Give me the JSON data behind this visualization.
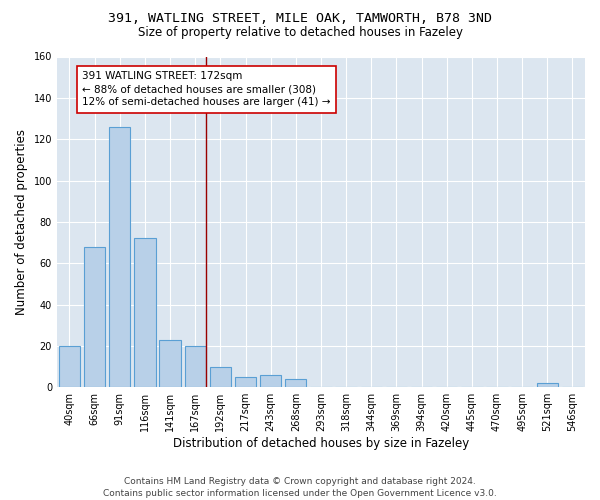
{
  "title1": "391, WATLING STREET, MILE OAK, TAMWORTH, B78 3ND",
  "title2": "Size of property relative to detached houses in Fazeley",
  "xlabel": "Distribution of detached houses by size in Fazeley",
  "ylabel": "Number of detached properties",
  "bar_labels": [
    "40sqm",
    "66sqm",
    "91sqm",
    "116sqm",
    "141sqm",
    "167sqm",
    "192sqm",
    "217sqm",
    "243sqm",
    "268sqm",
    "293sqm",
    "318sqm",
    "344sqm",
    "369sqm",
    "394sqm",
    "420sqm",
    "445sqm",
    "470sqm",
    "495sqm",
    "521sqm",
    "546sqm"
  ],
  "bar_values": [
    20,
    68,
    126,
    72,
    23,
    20,
    10,
    5,
    6,
    4,
    0,
    0,
    0,
    0,
    0,
    0,
    0,
    0,
    0,
    2,
    0
  ],
  "bar_color": "#b8d0e8",
  "bar_edge_color": "#5a9fd4",
  "background_color": "#dce6f0",
  "annotation_line_color": "#990000",
  "annotation_text_line1": "391 WATLING STREET: 172sqm",
  "annotation_text_line2": "← 88% of detached houses are smaller (308)",
  "annotation_text_line3": "12% of semi-detached houses are larger (41) →",
  "annotation_box_edge_color": "#cc0000",
  "ylim": [
    0,
    160
  ],
  "yticks": [
    0,
    20,
    40,
    60,
    80,
    100,
    120,
    140,
    160
  ],
  "vline_idx": 5,
  "footer": "Contains HM Land Registry data © Crown copyright and database right 2024.\nContains public sector information licensed under the Open Government Licence v3.0.",
  "title_fontsize": 9.5,
  "subtitle_fontsize": 8.5,
  "axis_label_fontsize": 8.5,
  "tick_fontsize": 7,
  "annotation_fontsize": 7.5,
  "footer_fontsize": 6.5
}
